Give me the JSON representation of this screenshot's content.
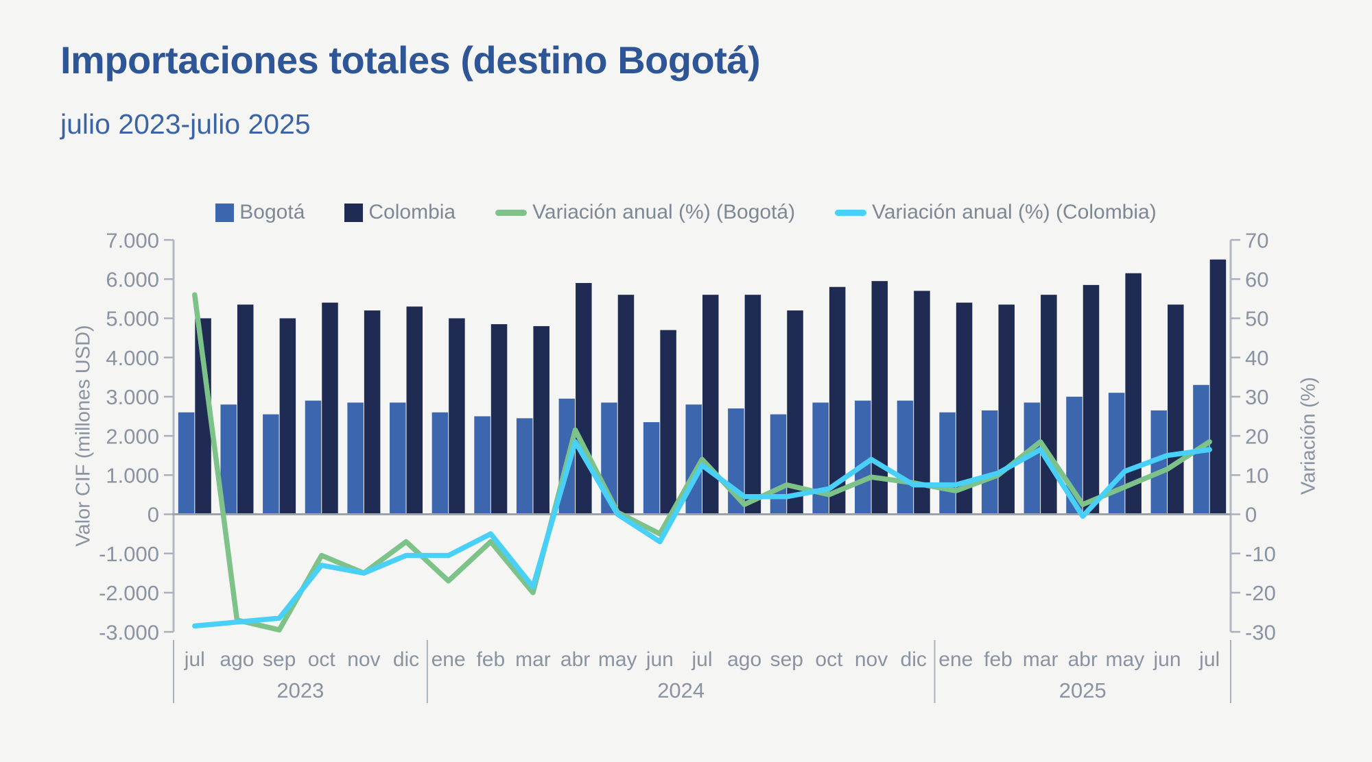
{
  "chart_data": {
    "type": "combo",
    "title": "Importaciones totales (destino Bogotá)",
    "subtitle": "julio 2023-julio 2025",
    "background_color": "#f5f5f3",
    "title_color": "#2e5596",
    "legend_position": "top-center",
    "grid": false,
    "left_axis": {
      "title": "Valor CIF (millones USD)",
      "min": -3000,
      "max": 7000,
      "step": 1000,
      "tick_labels": [
        "7.000",
        "6.000",
        "5.000",
        "4.000",
        "3.000",
        "2.000",
        "1.000",
        "0",
        "-1.000",
        "-2.000",
        "-3.000"
      ]
    },
    "right_axis": {
      "title": "Variación (%)",
      "min": -30,
      "max": 70,
      "step": 10,
      "tick_labels": [
        "70",
        "60",
        "50",
        "40",
        "30",
        "20",
        "10",
        "0",
        "-10",
        "-20",
        "-30"
      ]
    },
    "year_groups": [
      {
        "year": "2023",
        "months": [
          "jul",
          "ago",
          "sep",
          "oct",
          "nov",
          "dic"
        ]
      },
      {
        "year": "2024",
        "months": [
          "ene",
          "feb",
          "mar",
          "abr",
          "may",
          "jun",
          "jul",
          "ago",
          "sep",
          "oct",
          "nov",
          "dic"
        ]
      },
      {
        "year": "2025",
        "months": [
          "ene",
          "feb",
          "mar",
          "abr",
          "may",
          "jun",
          "jul"
        ]
      }
    ],
    "series": [
      {
        "name": "Bogotá",
        "type": "bar",
        "axis": "left",
        "color": "#3c67ae",
        "values": [
          2600,
          2800,
          2550,
          2900,
          2850,
          2850,
          2600,
          2500,
          2450,
          2950,
          2850,
          2350,
          2800,
          2700,
          2550,
          2850,
          2900,
          2900,
          2600,
          2650,
          2850,
          3000,
          3100,
          2650,
          3300
        ]
      },
      {
        "name": "Colombia",
        "type": "bar",
        "axis": "left",
        "color": "#1f2b52",
        "values": [
          5000,
          5350,
          5000,
          5400,
          5200,
          5300,
          5000,
          4850,
          4800,
          5900,
          5600,
          4700,
          5600,
          5600,
          5200,
          5800,
          5950,
          5700,
          5400,
          5350,
          5600,
          5850,
          6150,
          5350,
          6500
        ]
      },
      {
        "name": "Variación anual (%) (Bogotá)",
        "type": "line",
        "axis": "right",
        "color": "#7dc289",
        "values": [
          56,
          -27,
          -29.5,
          -10.5,
          -15,
          -7,
          -17,
          -7,
          -20,
          21.5,
          0.5,
          -5,
          14,
          2.5,
          7.5,
          5,
          9.5,
          8,
          6,
          10,
          18.5,
          2.5,
          7,
          11.5,
          18.5
        ]
      },
      {
        "name": "Variación anual (%) (Colombia)",
        "type": "line",
        "axis": "right",
        "color": "#49d0f8",
        "values": [
          -28.5,
          -27.5,
          -26.5,
          -13,
          -15,
          -10.5,
          -10.5,
          -5,
          -18.5,
          18.5,
          0,
          -7,
          12.5,
          4.5,
          4.5,
          6.5,
          14,
          7.5,
          7.5,
          10.5,
          16.5,
          -0.5,
          11,
          15,
          16.5
        ]
      }
    ]
  },
  "colors": {
    "axis_line": "#b3b9c2",
    "baseline": "#9aa2ab",
    "tick": "#a9b0ba",
    "tick_text": "#8a93a1",
    "legend_text": "#7e8794"
  }
}
